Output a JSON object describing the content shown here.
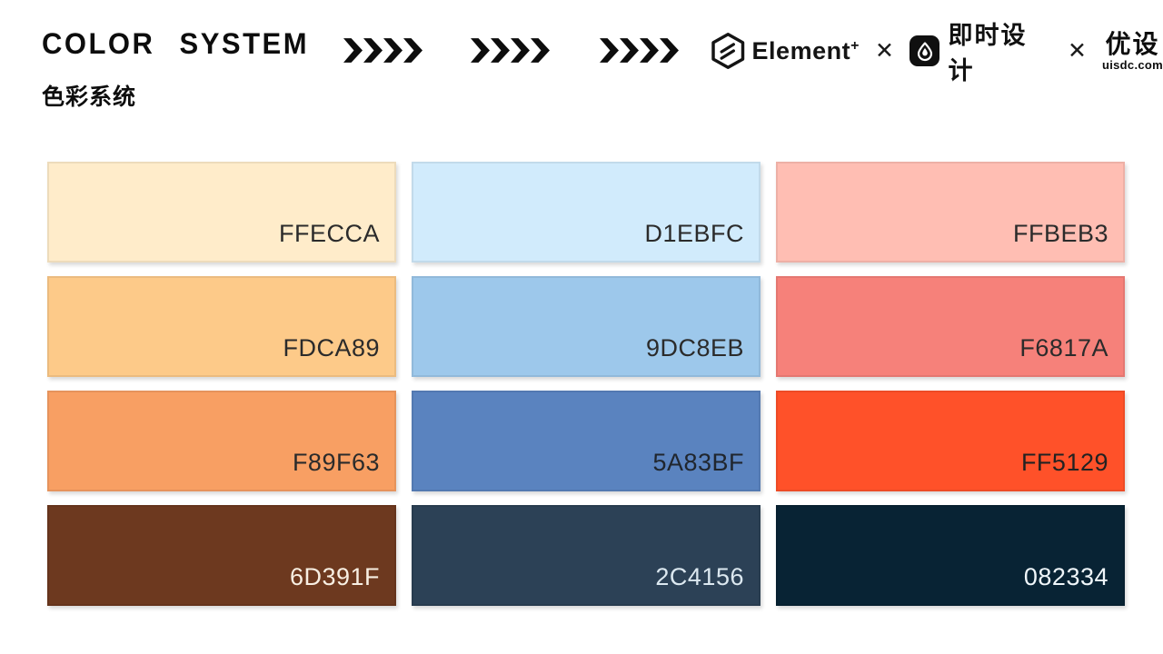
{
  "header": {
    "title_en": "COLOR SYSTEM",
    "title_zh": "色彩系统",
    "accent_color": "#0d0d0d",
    "background_color": "#ffffff",
    "arrow_groups": 3,
    "arrows_per_group": 4,
    "brands": {
      "element_label": "Element",
      "element_plus": "+",
      "separator1": "✕",
      "jishi_label": "即时设计",
      "separator2": "✕",
      "uisdc_label": "优设",
      "uisdc_domain": "uisdc.com"
    }
  },
  "palette": {
    "columns": 3,
    "rows": 4,
    "swatches": [
      {
        "hex": "FFECCA",
        "color": "#FFECCA",
        "text_color": "#2b2b2b"
      },
      {
        "hex": "D1EBFC",
        "color": "#D1EBFC",
        "text_color": "#2b2b2b"
      },
      {
        "hex": "FFBEB3",
        "color": "#FFBEB3",
        "text_color": "#2b2b2b"
      },
      {
        "hex": "FDCA89",
        "color": "#FDCA89",
        "text_color": "#2b2b2b"
      },
      {
        "hex": "9DC8EB",
        "color": "#9DC8EB",
        "text_color": "#2b2b2b"
      },
      {
        "hex": "F6817A",
        "color": "#F6817A",
        "text_color": "#2b2b2b"
      },
      {
        "hex": "F89F63",
        "color": "#F89F63",
        "text_color": "#2b2b2b"
      },
      {
        "hex": "5A83BF",
        "color": "#5A83BF",
        "text_color": "#20262e"
      },
      {
        "hex": "FF5129",
        "color": "#FF5129",
        "text_color": "#222222"
      },
      {
        "hex": "6D391F",
        "color": "#6D391F",
        "text_color": "#F8EFE2"
      },
      {
        "hex": "2C4156",
        "color": "#2C4156",
        "text_color": "#DCE8F0"
      },
      {
        "hex": "082334",
        "color": "#082334",
        "text_color": "#EFF6FA"
      }
    ]
  }
}
